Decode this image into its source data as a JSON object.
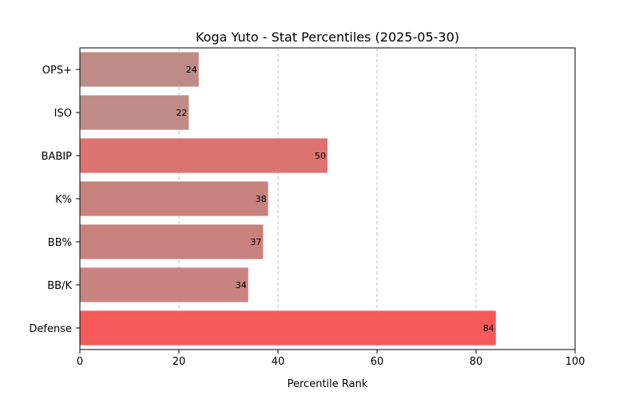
{
  "chart_data": {
    "type": "bar",
    "orientation": "horizontal",
    "title": "Koga Yuto - Stat Percentiles (2025-05-30)",
    "xlabel": "Percentile Rank",
    "ylabel": "",
    "xlim": [
      0,
      100
    ],
    "xticks": [
      0,
      20,
      40,
      60,
      80,
      100
    ],
    "grid": "vertical-dashed",
    "categories": [
      "OPS+",
      "ISO",
      "BABIP",
      "K%",
      "BB%",
      "BB/K",
      "Defense"
    ],
    "values": [
      24,
      22,
      50,
      38,
      37,
      34,
      84
    ],
    "colors": [
      "#bf8b87",
      "#bf8c88",
      "#dc7370",
      "#c8827e",
      "#c9817e",
      "#c98481",
      "#f55959"
    ]
  }
}
